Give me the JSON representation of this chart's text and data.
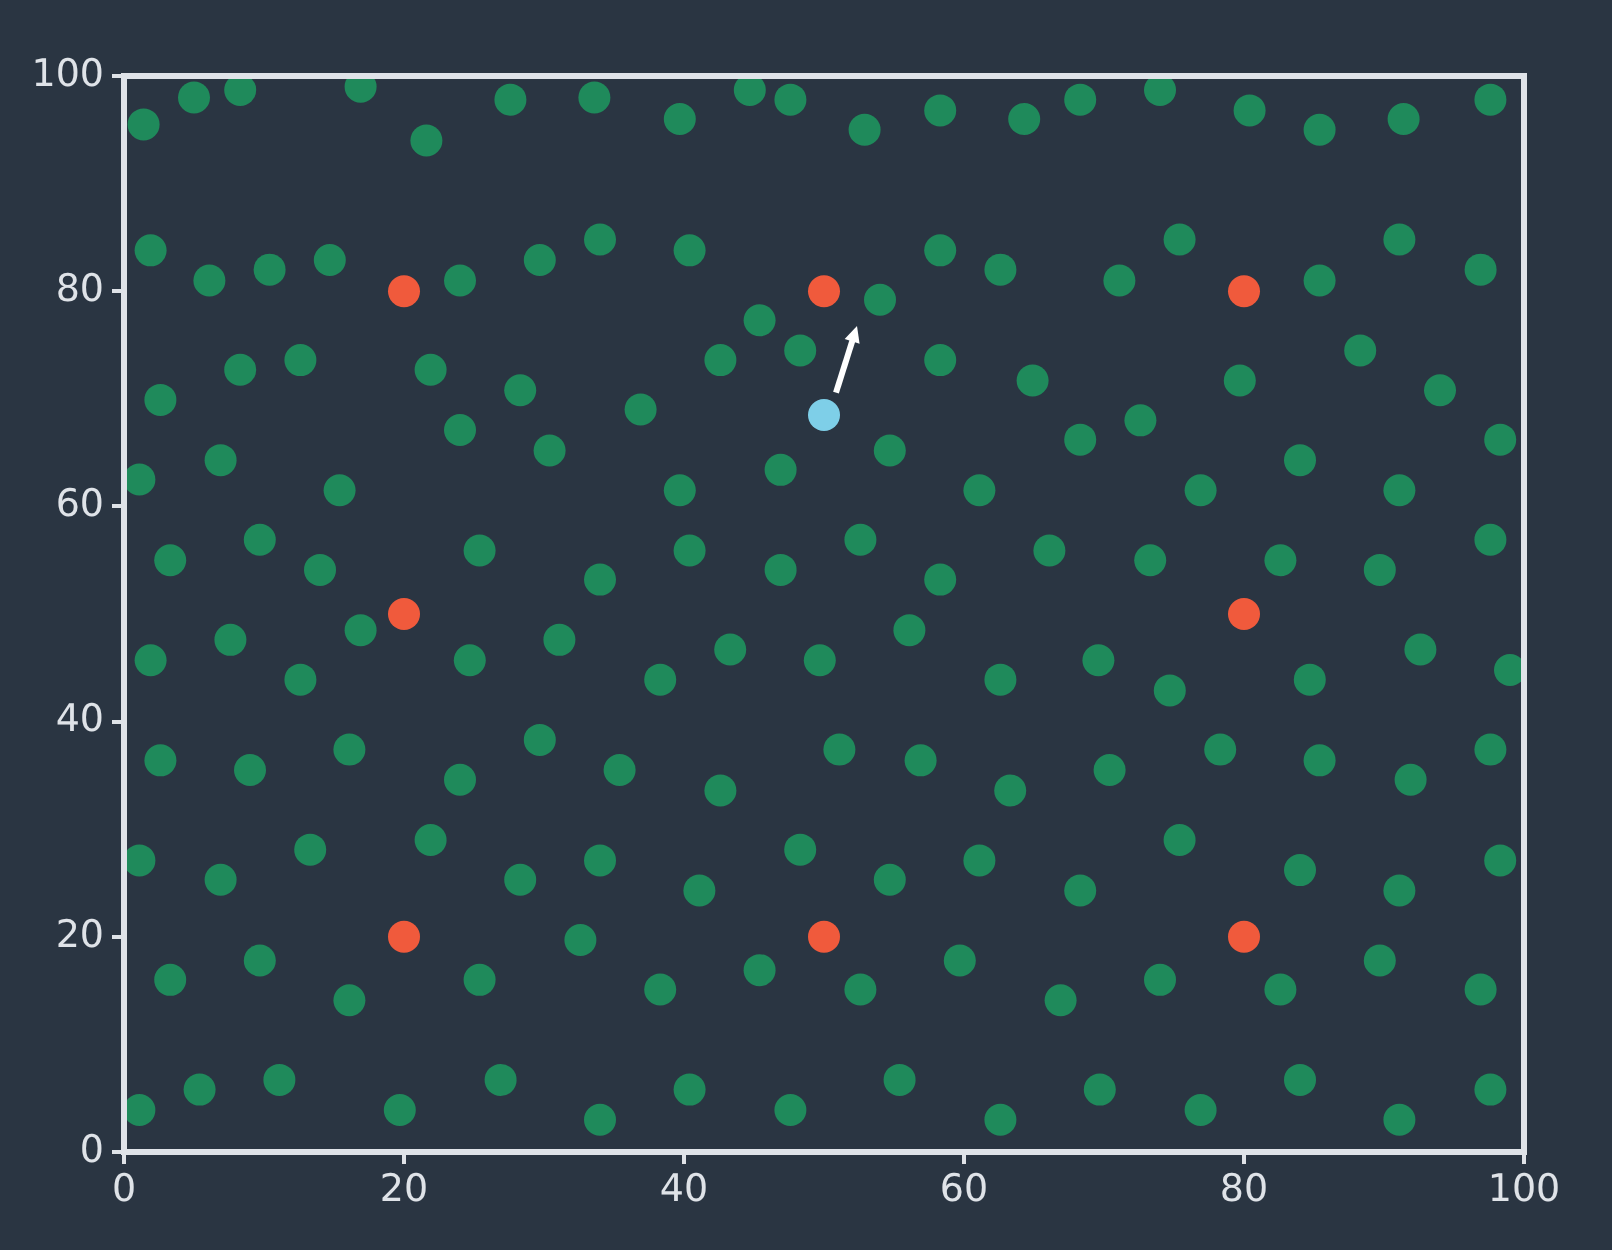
{
  "chart_data": {
    "type": "scatter",
    "xlim": [
      0,
      100
    ],
    "ylim": [
      0,
      100
    ],
    "xticks": [
      0,
      20,
      40,
      60,
      80,
      100
    ],
    "yticks": [
      0,
      20,
      40,
      60,
      80,
      100
    ],
    "grid": false,
    "legend": false,
    "marker": "circle",
    "series": [
      {
        "color": "#1f8a5b",
        "x": [
          1.4,
          5,
          8.3,
          16.9,
          21.6,
          27.6,
          33.6,
          39.7,
          44.7,
          47.6,
          52.9,
          58.3,
          64.3,
          68.3,
          74,
          80.4,
          85.4,
          91.4,
          97.6,
          1.9,
          6.1,
          10.4,
          14.7,
          24,
          29.7,
          34,
          40.4,
          45.4,
          54,
          58.3,
          62.6,
          71.1,
          75.4,
          85.4,
          91.1,
          96.9,
          2.6,
          8.3,
          12.6,
          21.9,
          28.3,
          36.9,
          42.6,
          48.3,
          58.3,
          64.9,
          72.6,
          79.7,
          88.3,
          94,
          1.1,
          6.9,
          15.4,
          24,
          30.4,
          39.7,
          46.9,
          54.7,
          61.1,
          68.3,
          76.9,
          84,
          91.1,
          98.3,
          3.3,
          9.7,
          14,
          25.4,
          34,
          40.4,
          46.9,
          52.6,
          58.3,
          66.1,
          73.3,
          82.6,
          89.7,
          97.6,
          1.9,
          7.6,
          12.6,
          16.9,
          24.7,
          31.1,
          38.3,
          43.3,
          49.7,
          56.1,
          62.6,
          69.6,
          74.7,
          84.7,
          92.6,
          99,
          2.6,
          9,
          16.1,
          24,
          29.7,
          35.4,
          42.6,
          51.1,
          56.9,
          63.3,
          70.4,
          78.3,
          85.4,
          91.9,
          97.6,
          1.1,
          6.9,
          13.3,
          21.9,
          28.3,
          34,
          41.1,
          48.3,
          54.7,
          61.1,
          68.3,
          75.4,
          84,
          91.1,
          98.3,
          3.3,
          9.7,
          16.1,
          25.4,
          32.6,
          38.3,
          45.4,
          52.6,
          59.7,
          66.9,
          74,
          82.6,
          89.7,
          96.9,
          1.1,
          5.4,
          11.1,
          19.7,
          26.9,
          34,
          40.4,
          47.6,
          55.4,
          62.6,
          69.7,
          76.9,
          84,
          91.1,
          97.6
        ],
        "values": [
          95.5,
          98,
          98.7,
          99,
          94,
          97.8,
          98,
          96,
          98.7,
          97.8,
          95,
          96.8,
          96,
          97.8,
          98.7,
          96.8,
          95,
          96,
          97.8,
          83.8,
          81,
          82,
          82.9,
          81,
          82.9,
          84.8,
          83.8,
          77.3,
          79.2,
          83.8,
          82,
          81,
          84.8,
          81,
          84.8,
          82,
          69.9,
          72.7,
          73.6,
          72.7,
          70.8,
          69,
          73.6,
          74.5,
          73.6,
          71.7,
          68,
          71.7,
          74.5,
          70.8,
          62.5,
          64.3,
          61.5,
          67.1,
          65.2,
          61.5,
          63.4,
          65.2,
          61.5,
          66.2,
          61.5,
          64.3,
          61.5,
          66.2,
          55,
          56.9,
          54.1,
          55.9,
          53.2,
          55.9,
          54.1,
          56.9,
          53.2,
          55.9,
          55,
          55,
          54.1,
          56.9,
          45.7,
          47.6,
          43.9,
          48.5,
          45.7,
          47.6,
          43.9,
          46.7,
          45.7,
          48.5,
          43.9,
          45.7,
          42.9,
          43.9,
          46.7,
          44.8,
          36.4,
          35.5,
          37.4,
          34.6,
          38.3,
          35.5,
          33.6,
          37.4,
          36.4,
          33.6,
          35.5,
          37.4,
          36.4,
          34.6,
          37.4,
          27.1,
          25.3,
          28.1,
          29,
          25.3,
          27.1,
          24.3,
          28.1,
          25.3,
          27.1,
          24.3,
          29,
          26.2,
          24.3,
          27.1,
          16,
          17.8,
          14.1,
          16,
          19.7,
          15.1,
          16.9,
          15.1,
          17.8,
          14.1,
          16,
          15.1,
          17.8,
          15.1,
          3.9,
          5.8,
          6.7,
          3.9,
          6.7,
          3,
          5.8,
          3.9,
          6.7,
          3,
          5.8,
          3.9,
          6.7,
          3,
          5.8
        ]
      },
      {
        "color": "#f05a3c",
        "x": [
          20,
          50,
          80,
          20,
          80,
          20,
          50,
          80
        ],
        "values": [
          80,
          80,
          80,
          50,
          50,
          20,
          20,
          20
        ]
      },
      {
        "color": "#7ecfe8",
        "x": [
          50
        ],
        "values": [
          68.5
        ]
      }
    ]
  }
}
